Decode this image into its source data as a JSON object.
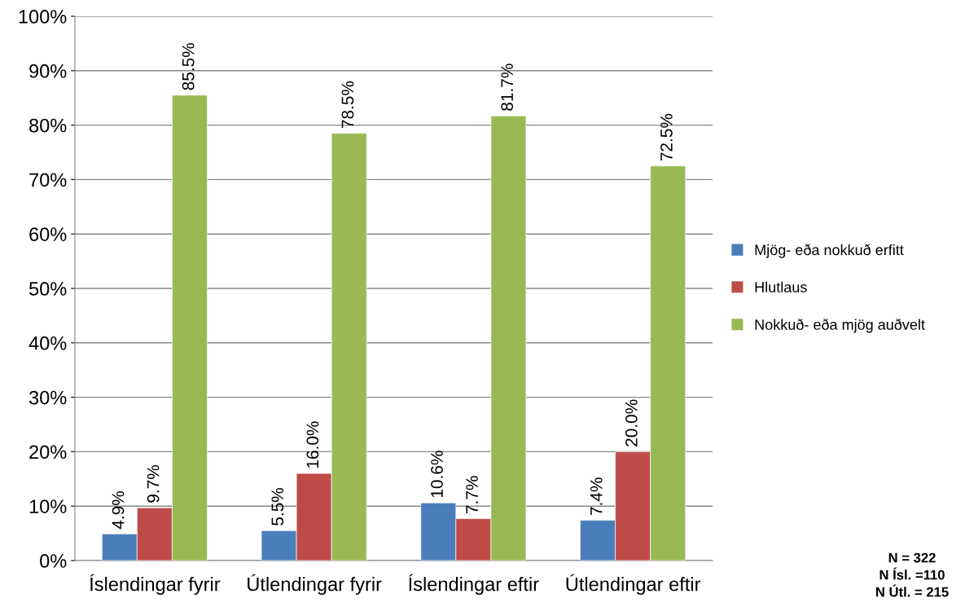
{
  "chart_data": {
    "type": "bar",
    "categories": [
      "Íslendingar fyrir",
      "Útlendingar fyrir",
      "Íslendingar eftir",
      "Útlendingar eftir"
    ],
    "series": [
      {
        "name": "Mjög- eða nokkuð erfitt",
        "color": "#4a7ebb",
        "values": [
          4.9,
          5.5,
          10.6,
          7.4
        ],
        "value_labels": [
          "4.9%",
          "5.5%",
          "10.6%",
          "7.4%"
        ]
      },
      {
        "name": "Hlutlaus",
        "color": "#be4b48",
        "values": [
          9.7,
          16.0,
          7.7,
          20.0
        ],
        "value_labels": [
          "9.7%",
          "16.0%",
          "7.7%",
          "20.0%"
        ]
      },
      {
        "name": "Nokkuð- eða mjög auðvelt",
        "color": "#98b954",
        "values": [
          85.5,
          78.5,
          81.7,
          72.5
        ],
        "value_labels": [
          "85.5%",
          "78.5%",
          "81.7%",
          "72.5%"
        ]
      }
    ],
    "ylim": [
      0,
      100
    ],
    "yticks": [
      {
        "value": 0,
        "label": "0%"
      },
      {
        "value": 10,
        "label": "10%"
      },
      {
        "value": 20,
        "label": "20%"
      },
      {
        "value": 30,
        "label": "30%"
      },
      {
        "value": 40,
        "label": "40%"
      },
      {
        "value": 50,
        "label": "50%"
      },
      {
        "value": 60,
        "label": "60%"
      },
      {
        "value": 70,
        "label": "70%"
      },
      {
        "value": 80,
        "label": "80%"
      },
      {
        "value": 90,
        "label": "90%"
      },
      {
        "value": 100,
        "label": "100%"
      }
    ],
    "grid": "y",
    "legend": "right",
    "annotations": [
      "N = 322",
      "N Ísl. =110",
      "N Útl. = 215"
    ]
  }
}
